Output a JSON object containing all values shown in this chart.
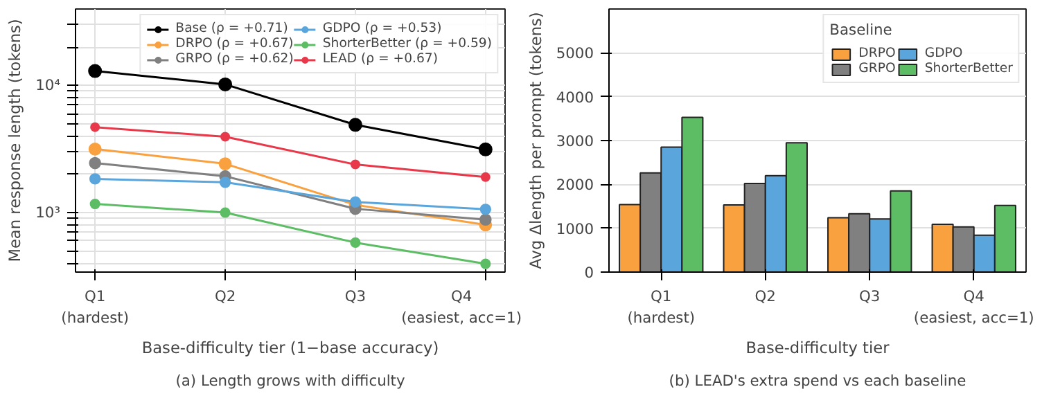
{
  "chart_data": [
    {
      "type": "line",
      "xlabel": "Base-difficulty tier (1−base accuracy)",
      "ylabel": "Mean response length (tokens)",
      "annotations": [
        "(a) Length grows with difficulty"
      ],
      "categories": [
        "Q1\n(hardest)",
        "Q2",
        "Q3",
        "Q4\n(easiest, acc=1)"
      ],
      "log": true,
      "ylim": [
        340,
        40000
      ],
      "yticks": [
        {
          "value": 400,
          "label": null
        },
        {
          "value": 500,
          "label": null
        },
        {
          "value": 600,
          "label": null
        },
        {
          "value": 700,
          "label": null
        },
        {
          "value": 800,
          "label": null
        },
        {
          "value": 900,
          "label": null
        },
        {
          "value": 1000,
          "label": "10³"
        },
        {
          "value": 2000,
          "label": null
        },
        {
          "value": 3000,
          "label": null
        },
        {
          "value": 4000,
          "label": null
        },
        {
          "value": 5000,
          "label": null
        },
        {
          "value": 6000,
          "label": null
        },
        {
          "value": 7000,
          "label": null
        },
        {
          "value": 8000,
          "label": null
        },
        {
          "value": 9000,
          "label": null
        },
        {
          "value": 10000,
          "label": "10⁴"
        },
        {
          "value": 20000,
          "label": null
        },
        {
          "value": 30000,
          "label": null
        }
      ],
      "grid": true,
      "legend": "top right",
      "marker": "circle",
      "line_style": "solid",
      "series": [
        {
          "name": "Base (ρ = +0.71)",
          "color": "#000000",
          "values": [
            13000,
            10200,
            4900,
            3140
          ]
        },
        {
          "name": "DRPO (ρ = +0.67)",
          "color": "#f9a03f",
          "values": [
            3160,
            2420,
            1150,
            800
          ]
        },
        {
          "name": "GRPO (ρ = +0.62)",
          "color": "#808080",
          "values": [
            2450,
            1930,
            1070,
            880
          ]
        },
        {
          "name": "GDPO (ρ = +0.53)",
          "color": "#5aa5db",
          "values": [
            1840,
            1730,
            1210,
            1060
          ]
        },
        {
          "name": "ShorterBetter (ρ = +0.59)",
          "color": "#5cbd65",
          "values": [
            1170,
            1000,
            580,
            395
          ]
        },
        {
          "name": "LEAD (ρ = +0.67)",
          "color": "#e8394a",
          "values": [
            4700,
            3950,
            2390,
            1900
          ]
        }
      ]
    },
    {
      "type": "bar",
      "xlabel": "Base-difficulty tier",
      "ylabel": "Avg Δlength per prompt (tokens)",
      "annotations": [
        "(b) LEAD's extra spend vs each baseline"
      ],
      "categories": [
        "Q1\n(hardest)",
        "Q2",
        "Q3",
        "Q4\n(easiest, acc=1)"
      ],
      "ylim": [
        0,
        6000
      ],
      "yticks": [
        0,
        1000,
        2000,
        3000,
        4000,
        5000
      ],
      "grid": "y",
      "legend": "top right",
      "legend_title": "Baseline",
      "series": [
        {
          "name": "DRPO",
          "color": "#f9a03f",
          "values": [
            1540,
            1530,
            1240,
            1090
          ]
        },
        {
          "name": "GRPO",
          "color": "#808080",
          "values": [
            2260,
            2020,
            1330,
            1030
          ]
        },
        {
          "name": "GDPO",
          "color": "#5aa5db",
          "values": [
            2850,
            2200,
            1210,
            840
          ]
        },
        {
          "name": "ShorterBetter",
          "color": "#5cbd65",
          "values": [
            3530,
            2950,
            1850,
            1520
          ]
        }
      ]
    }
  ]
}
